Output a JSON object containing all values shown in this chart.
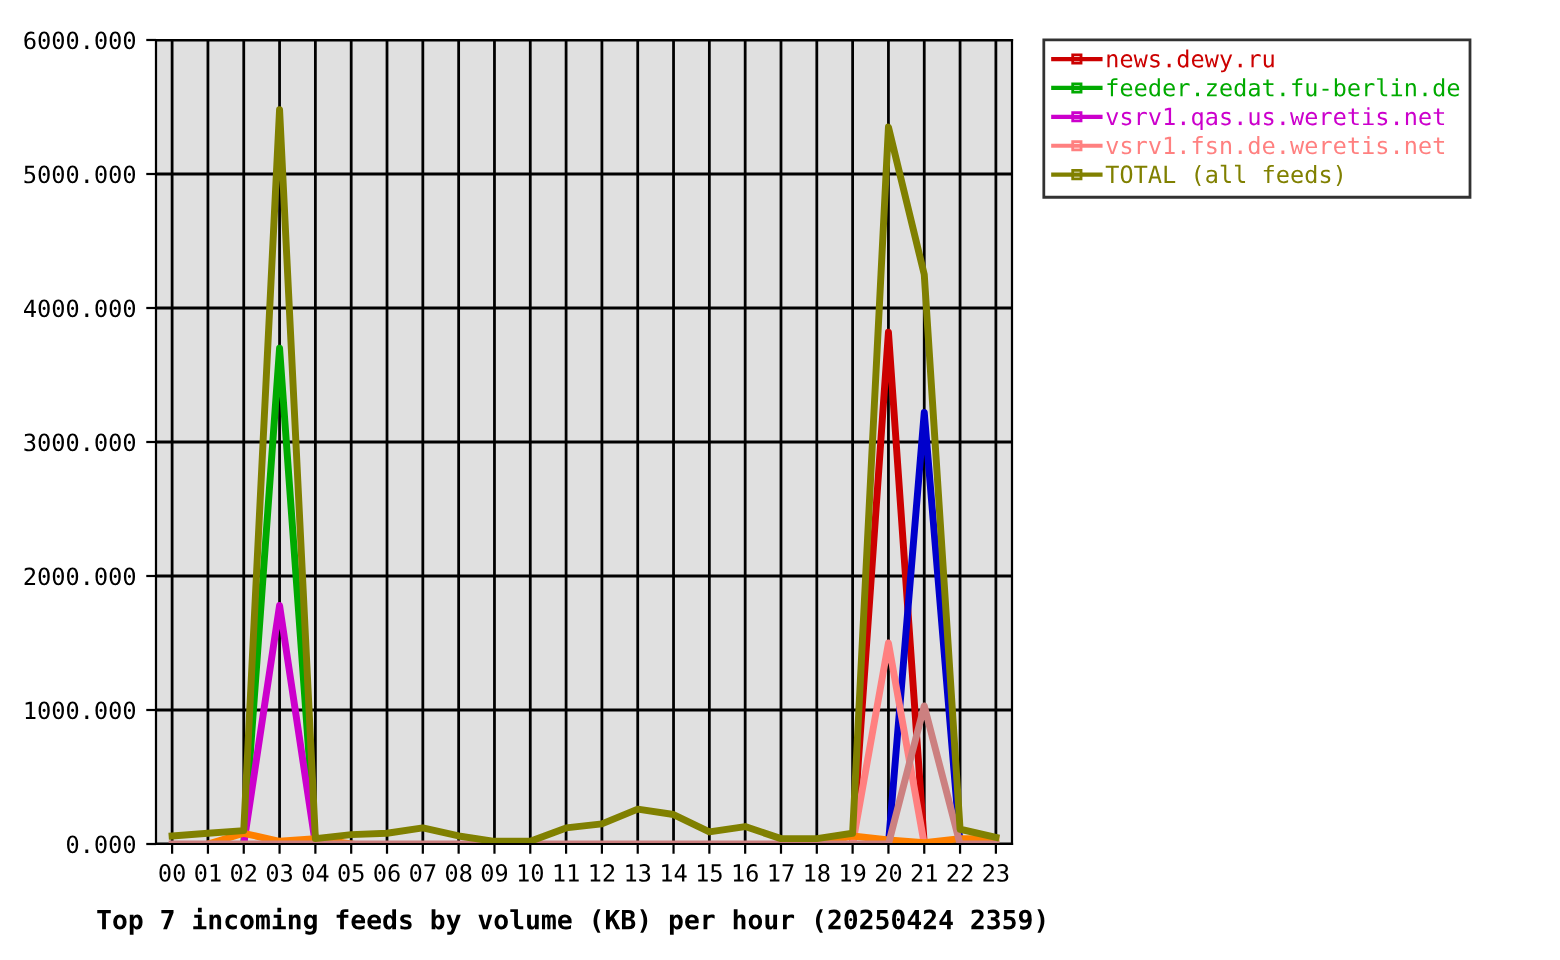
{
  "chart_data": {
    "type": "line",
    "title": "Top 7 incoming feeds by volume (KB) per hour (20250424 2359)",
    "categories": [
      "00",
      "01",
      "02",
      "03",
      "04",
      "05",
      "06",
      "07",
      "08",
      "09",
      "10",
      "11",
      "12",
      "13",
      "14",
      "15",
      "16",
      "17",
      "18",
      "19",
      "20",
      "21",
      "22",
      "23"
    ],
    "series": [
      {
        "name": "news.dewy.ru",
        "color": "#cc0000",
        "values": [
          null,
          null,
          null,
          null,
          null,
          null,
          null,
          null,
          null,
          null,
          null,
          null,
          null,
          null,
          null,
          null,
          null,
          null,
          null,
          0,
          3820,
          0,
          null,
          null
        ]
      },
      {
        "name": "feeder.zedat.fu-berlin.de",
        "color": "#00aa00",
        "values": [
          null,
          null,
          0,
          3700,
          0,
          null,
          null,
          null,
          null,
          null,
          null,
          null,
          null,
          null,
          null,
          null,
          null,
          null,
          null,
          null,
          null,
          null,
          null,
          null
        ]
      },
      {
        "color": "#0000cc",
        "values": [
          null,
          null,
          null,
          null,
          null,
          null,
          null,
          null,
          null,
          null,
          null,
          null,
          null,
          null,
          null,
          null,
          null,
          null,
          null,
          null,
          0,
          3220,
          0,
          null
        ]
      },
      {
        "name": "vsrv1.qas.us.weretis.net",
        "color": "#cc00cc",
        "values": [
          null,
          null,
          0,
          1780,
          0,
          null,
          null,
          null,
          null,
          null,
          null,
          null,
          null,
          null,
          null,
          null,
          null,
          null,
          null,
          null,
          null,
          null,
          null,
          null
        ]
      },
      {
        "name": "vsrv1.fsn.de.weretis.net",
        "color": "#ff8080",
        "values": [
          null,
          null,
          null,
          null,
          null,
          null,
          null,
          null,
          null,
          null,
          null,
          null,
          null,
          null,
          null,
          null,
          null,
          null,
          null,
          0,
          1500,
          0,
          null,
          null
        ]
      },
      {
        "color": "#ff8000",
        "values": [
          null,
          0,
          80,
          20,
          40,
          0,
          null,
          null,
          null,
          null,
          null,
          null,
          null,
          null,
          null,
          null,
          null,
          null,
          0,
          60,
          30,
          10,
          40,
          40
        ]
      },
      {
        "color": "#cc8080",
        "values": [
          0,
          0,
          0,
          0,
          0,
          0,
          0,
          0,
          0,
          0,
          0,
          0,
          0,
          0,
          0,
          0,
          0,
          0,
          0,
          0,
          0,
          1030,
          0,
          0
        ]
      },
      {
        "name": "TOTAL (all feeds)",
        "color": "#808000",
        "values": [
          60,
          80,
          100,
          5480,
          40,
          70,
          80,
          120,
          60,
          20,
          20,
          120,
          150,
          260,
          220,
          90,
          130,
          40,
          40,
          80,
          5350,
          4250,
          110,
          50
        ]
      }
    ],
    "ylim": [
      0,
      6000
    ],
    "yticks": [
      {
        "value": 0,
        "label": "0.000"
      },
      {
        "value": 1000,
        "label": "1000.000"
      },
      {
        "value": 2000,
        "label": "2000.000"
      },
      {
        "value": 3000,
        "label": "3000.000"
      },
      {
        "value": 4000,
        "label": "4000.000"
      },
      {
        "value": 5000,
        "label": "5000.000"
      },
      {
        "value": 6000,
        "label": "6000.000"
      }
    ],
    "grid": true,
    "legend": "top right",
    "marker": "none",
    "line_style": "solid"
  }
}
